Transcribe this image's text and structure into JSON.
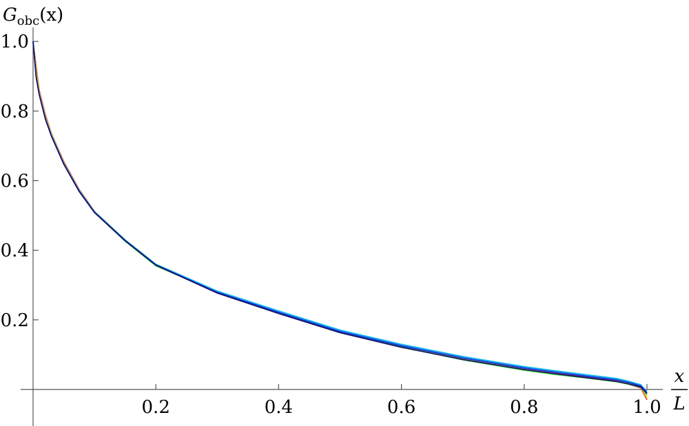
{
  "chart_data": {
    "type": "line",
    "y_label": {
      "main": "G",
      "sub": "obc",
      "arg": "(x)"
    },
    "x_label": {
      "numerator": "x",
      "denominator": "L"
    },
    "x": [
      0,
      0.005,
      0.01,
      0.02,
      0.03,
      0.05,
      0.075,
      0.1,
      0.15,
      0.2,
      0.3,
      0.4,
      0.5,
      0.6,
      0.7,
      0.8,
      0.85,
      0.9,
      0.95,
      0.97,
      0.99,
      1.0
    ],
    "series": [
      {
        "color": "#e8412c",
        "values": [
          1.0,
          0.93,
          0.86,
          0.79,
          0.735,
          0.655,
          0.575,
          0.512,
          0.43,
          0.36,
          0.279,
          0.219,
          0.165,
          0.124,
          0.089,
          0.06,
          0.047,
          0.036,
          0.024,
          0.015,
          0.004,
          -0.03
        ]
      },
      {
        "color": "#f5a623",
        "values": [
          1.0,
          0.92,
          0.855,
          0.785,
          0.733,
          0.652,
          0.573,
          0.511,
          0.43,
          0.359,
          0.279,
          0.22,
          0.166,
          0.125,
          0.09,
          0.061,
          0.05,
          0.04,
          0.028,
          0.02,
          0.01,
          -0.025
        ]
      },
      {
        "color": "#e0e020",
        "values": [
          1.0,
          0.91,
          0.852,
          0.782,
          0.731,
          0.65,
          0.572,
          0.51,
          0.428,
          0.357,
          0.279,
          0.221,
          0.166,
          0.124,
          0.089,
          0.06,
          0.049,
          0.039,
          0.027,
          0.019,
          0.009,
          -0.02
        ]
      },
      {
        "color": "#3ee03e",
        "values": [
          1.0,
          0.905,
          0.85,
          0.78,
          0.73,
          0.649,
          0.571,
          0.509,
          0.426,
          0.355,
          0.28,
          0.222,
          0.167,
          0.122,
          0.085,
          0.055,
          0.043,
          0.033,
          0.022,
          0.015,
          0.006,
          -0.015
        ]
      },
      {
        "color": "#20d0e0",
        "values": [
          1.0,
          0.9,
          0.85,
          0.78,
          0.73,
          0.65,
          0.572,
          0.511,
          0.43,
          0.36,
          0.283,
          0.226,
          0.171,
          0.13,
          0.095,
          0.066,
          0.054,
          0.043,
          0.032,
          0.024,
          0.014,
          -0.01
        ]
      },
      {
        "color": "#1a8cff",
        "values": [
          1.0,
          0.9,
          0.849,
          0.779,
          0.729,
          0.649,
          0.571,
          0.51,
          0.429,
          0.359,
          0.281,
          0.224,
          0.169,
          0.128,
          0.093,
          0.064,
          0.052,
          0.041,
          0.03,
          0.022,
          0.012,
          -0.005
        ]
      },
      {
        "color": "#1030d0",
        "values": [
          1.0,
          0.898,
          0.848,
          0.778,
          0.728,
          0.648,
          0.57,
          0.509,
          0.428,
          0.358,
          0.279,
          0.221,
          0.166,
          0.125,
          0.09,
          0.061,
          0.049,
          0.038,
          0.027,
          0.02,
          0.01,
          -0.01
        ]
      },
      {
        "color": "#101060",
        "values": [
          1.0,
          0.897,
          0.847,
          0.777,
          0.727,
          0.647,
          0.569,
          0.508,
          0.427,
          0.357,
          0.277,
          0.218,
          0.163,
          0.121,
          0.086,
          0.057,
          0.045,
          0.034,
          0.023,
          0.016,
          0.007,
          -0.012
        ]
      }
    ],
    "xlim": [
      -0.0202,
      1.0258
    ],
    "ylim": [
      -0.105,
      1.119
    ],
    "xticks": [
      0.2,
      0.4,
      0.6,
      0.8,
      {
        "value": 1,
        "label": "1.0"
      }
    ],
    "yticks": [
      0.2,
      0.4,
      0.6,
      0.8,
      {
        "value": 1,
        "label": "1.0"
      }
    ]
  }
}
